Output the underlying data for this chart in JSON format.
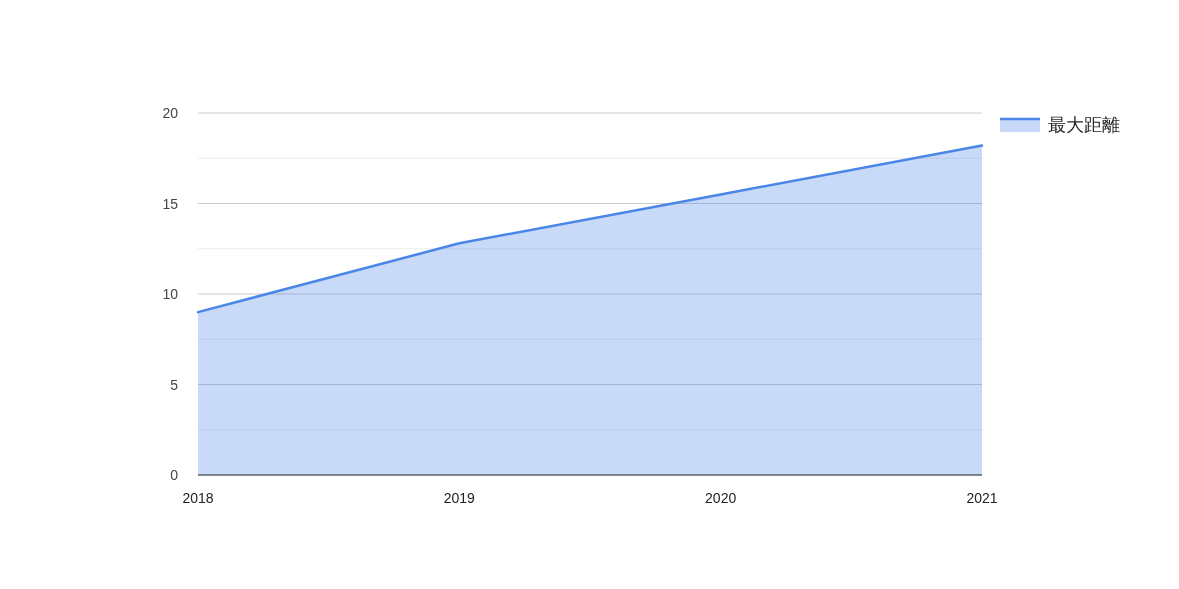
{
  "chart_data": {
    "type": "area",
    "categories": [
      "2018",
      "2019",
      "2020",
      "2021"
    ],
    "series": [
      {
        "name": "最大距離",
        "color": "#4a86e8",
        "values": [
          9.0,
          12.8,
          15.5,
          18.2
        ]
      }
    ],
    "ylim": [
      0,
      20
    ],
    "yticks": [
      0,
      5,
      10,
      15,
      20
    ],
    "grid": "y",
    "legend": "right"
  }
}
